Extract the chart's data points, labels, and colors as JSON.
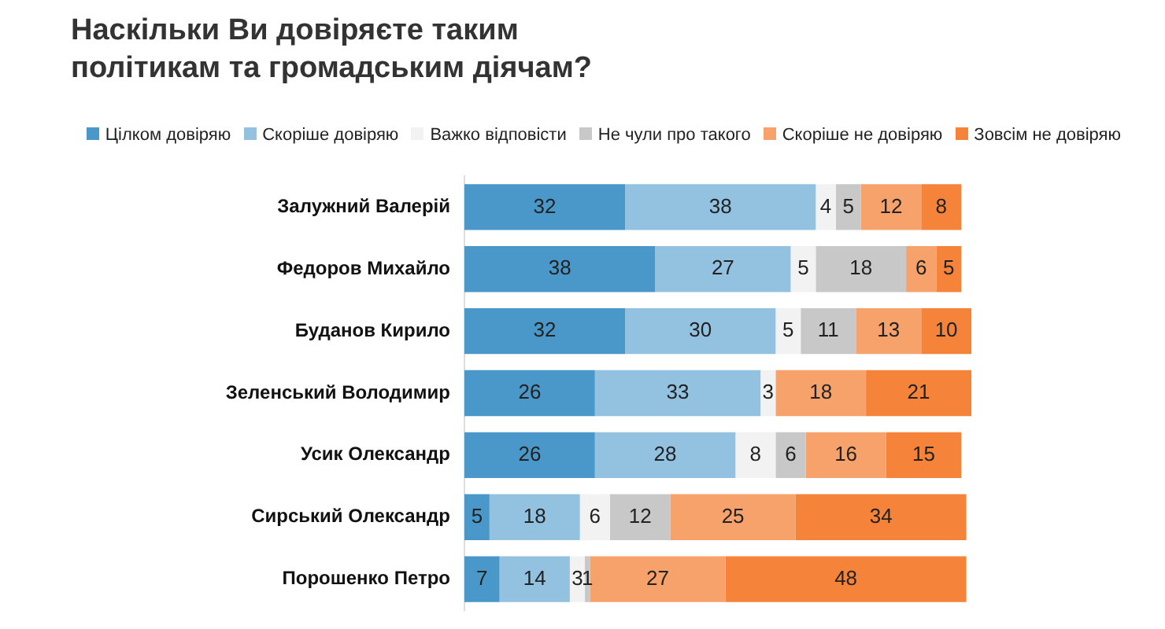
{
  "chart_data": {
    "type": "bar",
    "orientation": "horizontal",
    "stacked": true,
    "title": "Наскільки Ви довіряєте таким політикам та громадським діячам?",
    "categories": [
      "Залужний Валерій",
      "Федоров Михайло",
      "Буданов Кирило",
      "Зеленський Володимир",
      "Усик Олександр",
      "Сирський Олександр",
      "Порошенко Петро"
    ],
    "series": [
      {
        "name": "Цілком довіряю",
        "color": "#4a98c9",
        "values": [
          32,
          38,
          32,
          26,
          26,
          5,
          7
        ]
      },
      {
        "name": "Скоріше довіряю",
        "color": "#93c1e0",
        "values": [
          38,
          27,
          30,
          33,
          28,
          18,
          14
        ]
      },
      {
        "name": "Важко відповісти",
        "color": "#f2f2f2",
        "values": [
          4,
          5,
          5,
          3,
          8,
          6,
          3
        ]
      },
      {
        "name": "Не чули про такого",
        "color": "#c8c8c8",
        "values": [
          5,
          18,
          11,
          null,
          6,
          12,
          1
        ]
      },
      {
        "name": "Скоріше не довіряю",
        "color": "#f7a26a",
        "values": [
          12,
          6,
          13,
          18,
          16,
          25,
          27
        ]
      },
      {
        "name": "Зовсім не довіряю",
        "color": "#f5843a",
        "values": [
          8,
          5,
          10,
          21,
          15,
          34,
          48
        ]
      }
    ],
    "xlim": [
      0,
      101
    ],
    "tick_labels": "y",
    "data_labels": true,
    "legend": "top"
  }
}
